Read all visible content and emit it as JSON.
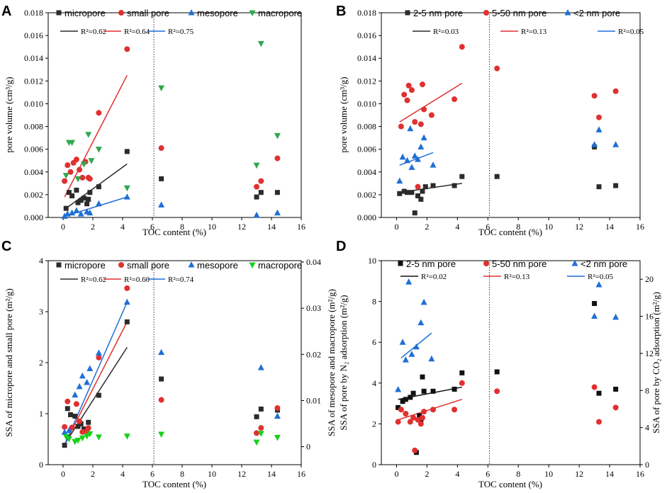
{
  "figure": {
    "colors": {
      "black": "#2b2b2b",
      "red": "#e03030",
      "blue": "#1f6fd6",
      "green": "#2fa84f",
      "green_bright": "#19d019"
    }
  },
  "chart_data": [
    {
      "type": "scatter",
      "panel": "A",
      "xlabel": "TOC content (%)",
      "ylabel": "pore volume (cm³/g)",
      "xlim": [
        -1,
        16
      ],
      "ylim": [
        0,
        0.018
      ],
      "xticks": [
        0,
        2,
        4,
        6,
        8,
        10,
        12,
        14,
        16
      ],
      "yticks": [
        0,
        0.002,
        0.004,
        0.006,
        0.008,
        0.01,
        0.012,
        0.014,
        0.016,
        0.018
      ],
      "ytick_labels": [
        "0.000",
        "0.002",
        "0.004",
        "0.006",
        "0.008",
        "0.010",
        "0.012",
        "0.014",
        "0.016",
        "0.018"
      ],
      "divider_x": 6.1,
      "series": [
        {
          "name": "micropore",
          "marker": "square",
          "color": "#2b2b2b",
          "x": [
            0.2,
            0.4,
            0.6,
            0.9,
            1.0,
            1.2,
            1.4,
            1.6,
            1.7,
            1.8,
            2.4,
            4.3,
            6.6,
            13.0,
            13.3,
            14.4
          ],
          "y": [
            0.0008,
            0.0022,
            0.0019,
            0.0024,
            0.0013,
            0.0015,
            0.0017,
            0.0012,
            0.0016,
            0.0022,
            0.0027,
            0.0058,
            0.0034,
            0.0018,
            0.0022,
            0.0022
          ],
          "fit": {
            "x": [
              0.2,
              4.3
            ],
            "y": [
              0.0008,
              0.0047
            ],
            "r2": "R²=0.62"
          }
        },
        {
          "name": "small pore",
          "marker": "circle",
          "color": "#e03030",
          "x": [
            0.1,
            0.3,
            0.5,
            0.7,
            0.9,
            1.1,
            1.3,
            1.5,
            1.7,
            1.8,
            2.4,
            4.3,
            6.6,
            13.0,
            13.3,
            14.4
          ],
          "y": [
            0.0032,
            0.0046,
            0.004,
            0.0048,
            0.0051,
            0.0042,
            0.0035,
            0.0049,
            0.0035,
            0.0034,
            0.0092,
            0.0148,
            0.0061,
            0.0027,
            0.0032,
            0.0052
          ],
          "fit": {
            "x": [
              0.1,
              4.3
            ],
            "y": [
              0.0018,
              0.0125
            ],
            "r2": "R²=0.64"
          }
        },
        {
          "name": "mesopore",
          "marker": "triangle-up",
          "color": "#1f6fd6",
          "x": [
            0.1,
            0.3,
            0.6,
            0.9,
            1.2,
            1.6,
            1.8,
            2.4,
            4.3,
            6.6,
            13.0,
            14.4
          ],
          "y": [
            0.0001,
            0.0003,
            0.0004,
            0.0006,
            0.0003,
            0.0005,
            0.0004,
            0.0012,
            0.0018,
            0.0011,
            0.0002,
            0.0004
          ],
          "fit": {
            "x": [
              0.1,
              4.3
            ],
            "y": [
              0.0001,
              0.0018
            ],
            "r2": "R²=0.75"
          }
        },
        {
          "name": "macropore",
          "marker": "triangle-down",
          "color": "#2fa84f",
          "x": [
            0.2,
            0.4,
            0.6,
            1.0,
            1.4,
            1.7,
            1.9,
            2.4,
            4.3,
            6.6,
            13.0,
            13.3,
            14.4
          ],
          "y": [
            0.0037,
            0.0066,
            0.0066,
            0.0034,
            0.0047,
            0.0073,
            0.005,
            0.006,
            0.0026,
            0.0114,
            0.0046,
            0.0153,
            0.0072
          ]
        }
      ]
    },
    {
      "type": "scatter",
      "panel": "B",
      "xlabel": "TOC content (%)",
      "ylabel": "pore volume (cm³/g)",
      "xlim": [
        -1,
        16
      ],
      "ylim": [
        0,
        0.018
      ],
      "xticks": [
        0,
        2,
        4,
        6,
        8,
        10,
        12,
        14,
        16
      ],
      "yticks": [
        0,
        0.002,
        0.004,
        0.006,
        0.008,
        0.01,
        0.012,
        0.014,
        0.016,
        0.018
      ],
      "ytick_labels": [
        "0.000",
        "0.002",
        "0.004",
        "0.006",
        "0.008",
        "0.010",
        "0.012",
        "0.014",
        "0.016",
        "0.018"
      ],
      "divider_x": 6.1,
      "series": [
        {
          "name": "2-5 nm pore",
          "marker": "square",
          "color": "#2b2b2b",
          "x": [
            0.2,
            0.5,
            0.7,
            1.0,
            1.2,
            1.4,
            1.6,
            1.7,
            1.9,
            2.4,
            3.8,
            4.3,
            6.6,
            13.0,
            13.3,
            14.4
          ],
          "y": [
            0.0021,
            0.0023,
            0.0022,
            0.0022,
            0.0004,
            0.0019,
            0.0016,
            0.0023,
            0.0027,
            0.0028,
            0.0028,
            0.0036,
            0.0036,
            0.0062,
            0.0027,
            0.0028
          ],
          "fit": {
            "x": [
              0.2,
              4.3
            ],
            "y": [
              0.0022,
              0.003
            ],
            "r2": "R²=0.03"
          }
        },
        {
          "name": "5-50 nm pore",
          "marker": "circle",
          "color": "#e03030",
          "x": [
            0.3,
            0.5,
            0.7,
            0.8,
            1.0,
            1.2,
            1.4,
            1.6,
            1.7,
            1.8,
            2.3,
            3.8,
            4.3,
            6.6,
            13.0,
            13.3,
            14.4
          ],
          "y": [
            0.008,
            0.0108,
            0.0103,
            0.0116,
            0.0112,
            0.0084,
            0.0027,
            0.0082,
            0.0117,
            0.0095,
            0.009,
            0.0104,
            0.015,
            0.0131,
            0.0107,
            0.0088,
            0.0111
          ],
          "fit": {
            "x": [
              0.2,
              4.3
            ],
            "y": [
              0.0084,
              0.0118
            ],
            "r2": "R²=0.13"
          }
        },
        {
          "name": "<2 nm pore",
          "marker": "triangle-up",
          "color": "#1f6fd6",
          "x": [
            0.2,
            0.4,
            0.7,
            0.9,
            1.0,
            1.2,
            1.4,
            1.6,
            1.8,
            2.4,
            13.0,
            13.3,
            14.4
          ],
          "y": [
            0.0032,
            0.0053,
            0.005,
            0.0078,
            0.0044,
            0.0054,
            0.0051,
            0.0062,
            0.007,
            0.0046,
            0.0064,
            0.0077,
            0.0064
          ],
          "fit": {
            "x": [
              0.2,
              2.4
            ],
            "y": [
              0.0046,
              0.0057
            ],
            "r2": "R²=0.05"
          }
        }
      ]
    },
    {
      "type": "scatter",
      "panel": "C",
      "xlabel": "TOC content (%)",
      "ylabel": "SSA of micropore and small pore (m²/g)",
      "ylabel_right": "SSA of mesopore and macropore (m²/g)",
      "xlim": [
        -1,
        16
      ],
      "ylim": [
        0,
        4
      ],
      "ylim_right": [
        -0.0039,
        0.0403
      ],
      "xticks": [
        0,
        2,
        4,
        6,
        8,
        10,
        12,
        14,
        16
      ],
      "yticks": [
        0,
        1,
        2,
        3,
        4
      ],
      "ytick_labels": [
        "0",
        "1",
        "2",
        "3",
        "4"
      ],
      "yticks_right": [
        0,
        0.01,
        0.02,
        0.03,
        0.04
      ],
      "ytick_labels_right": [
        "0",
        "0.01",
        "0.02",
        "0.03",
        "0.04"
      ],
      "divider_x": 6.1,
      "series": [
        {
          "name": "micropore",
          "marker": "square",
          "color": "#2b2b2b",
          "axis": "left",
          "x": [
            0.1,
            0.3,
            0.5,
            0.8,
            1.0,
            1.2,
            1.4,
            1.7,
            2.4,
            4.3,
            6.6,
            13.0,
            13.3,
            14.4
          ],
          "y": [
            0.38,
            1.1,
            0.98,
            0.95,
            0.75,
            0.8,
            0.7,
            0.83,
            1.36,
            2.8,
            1.68,
            0.94,
            1.09,
            1.07
          ],
          "fit": {
            "x": [
              0.1,
              4.3
            ],
            "y": [
              0.4,
              2.3
            ],
            "r2": "R²=0.62"
          }
        },
        {
          "name": "small pore",
          "marker": "circle",
          "color": "#e03030",
          "axis": "left",
          "x": [
            0.1,
            0.3,
            0.6,
            0.9,
            1.1,
            1.3,
            1.6,
            1.7,
            2.4,
            4.3,
            6.6,
            13.0,
            13.3,
            14.4
          ],
          "y": [
            0.74,
            1.24,
            0.73,
            1.19,
            0.85,
            0.64,
            0.66,
            0.72,
            2.1,
            3.46,
            1.27,
            0.62,
            0.72,
            1.11
          ],
          "fit": {
            "x": [
              0.1,
              4.3
            ],
            "y": [
              0.4,
              2.8
            ],
            "r2": "R²=0.60"
          }
        },
        {
          "name": "mesopore",
          "marker": "triangle-up",
          "color": "#1f6fd6",
          "axis": "right",
          "x": [
            0.1,
            0.4,
            0.8,
            1.1,
            1.3,
            1.6,
            1.8,
            2.4,
            4.3,
            6.6,
            13.3,
            14.4
          ],
          "y": [
            0.0031,
            0.0035,
            0.0112,
            0.013,
            0.0153,
            0.0139,
            0.0169,
            0.0203,
            0.0313,
            0.0204,
            0.0171,
            0.0066
          ],
          "fit": {
            "x": [
              0.1,
              4.3
            ],
            "y": [
              0.0004,
              0.0313
            ],
            "r2": "R²=0.74"
          }
        },
        {
          "name": "macropore",
          "marker": "triangle-down",
          "color": "#19d019",
          "axis": "right",
          "x": [
            0.2,
            0.4,
            0.8,
            1.0,
            1.3,
            1.6,
            1.8,
            2.4,
            4.3,
            6.6,
            13.0,
            13.3,
            14.4
          ],
          "y": [
            0.0022,
            0.0017,
            0.0011,
            0.0014,
            0.0019,
            0.0023,
            0.0028,
            0.0021,
            0.0023,
            0.0027,
            0.001,
            0.0029,
            0.002
          ]
        }
      ]
    },
    {
      "type": "scatter",
      "panel": "D",
      "xlabel": "TOC content (%)",
      "ylabel": "SSA of pore by N₂ adsorption (m²/g)",
      "ylabel_right": "SSA of pore by CO₂ adsorption (m²/g)",
      "xlim": [
        -1,
        16
      ],
      "ylim": [
        0,
        10
      ],
      "ylim_right": [
        0,
        22
      ],
      "xticks": [
        0,
        2,
        4,
        6,
        8,
        10,
        12,
        14,
        16
      ],
      "yticks": [
        0,
        2,
        4,
        6,
        8,
        10
      ],
      "ytick_labels": [
        "0",
        "2",
        "4",
        "6",
        "8",
        "10"
      ],
      "yticks_right": [
        0,
        4,
        8,
        12,
        16,
        20
      ],
      "ytick_labels_right": [
        "0",
        "4",
        "8",
        "12",
        "16",
        "20"
      ],
      "divider_x": 6.1,
      "series": [
        {
          "name": "2-5 nm pore",
          "marker": "square",
          "color": "#111111",
          "axis": "left",
          "x": [
            0.1,
            0.4,
            0.6,
            0.9,
            1.1,
            1.3,
            1.5,
            1.6,
            1.7,
            1.8,
            2.4,
            3.8,
            4.3,
            6.6,
            13.0,
            13.3,
            14.4
          ],
          "y": [
            2.8,
            3.1,
            3.2,
            3.3,
            3.5,
            0.6,
            2.4,
            2.2,
            4.3,
            3.6,
            3.6,
            3.7,
            4.5,
            4.55,
            7.9,
            3.5,
            3.7
          ],
          "fit": {
            "x": [
              0.1,
              4.3
            ],
            "y": [
              3.2,
              3.8
            ],
            "r2": "R²=0.02"
          }
        },
        {
          "name": "5-50 nm pore",
          "marker": "circle",
          "color": "#e03030",
          "axis": "left",
          "x": [
            0.1,
            0.3,
            0.6,
            0.9,
            1.1,
            1.2,
            1.4,
            1.6,
            1.7,
            1.8,
            2.4,
            3.8,
            4.3,
            6.6,
            13.0,
            13.3,
            14.4
          ],
          "y": [
            2.1,
            2.7,
            2.5,
            2.1,
            2.3,
            0.7,
            2.2,
            2.0,
            2.3,
            2.6,
            2.7,
            2.7,
            4.0,
            3.6,
            3.8,
            2.1,
            2.8
          ],
          "fit": {
            "x": [
              0.1,
              4.3
            ],
            "y": [
              2.2,
              3.2
            ],
            "r2": "R²=0.13"
          }
        },
        {
          "name": "<2 nm pore",
          "marker": "triangle-up",
          "color": "#1f6fd6",
          "axis": "right",
          "x": [
            0.1,
            0.4,
            0.6,
            0.8,
            1.0,
            1.3,
            1.6,
            1.8,
            2.3,
            13.0,
            13.3,
            14.4
          ],
          "y": [
            8.1,
            13.2,
            11.3,
            19.7,
            11.9,
            12.7,
            15.3,
            17.5,
            11.4,
            16.0,
            19.4,
            15.9
          ],
          "fit": {
            "x": [
              0.3,
              2.3
            ],
            "y": [
              11.5,
              14.2
            ],
            "r2": "R²=0.05"
          }
        }
      ]
    }
  ]
}
